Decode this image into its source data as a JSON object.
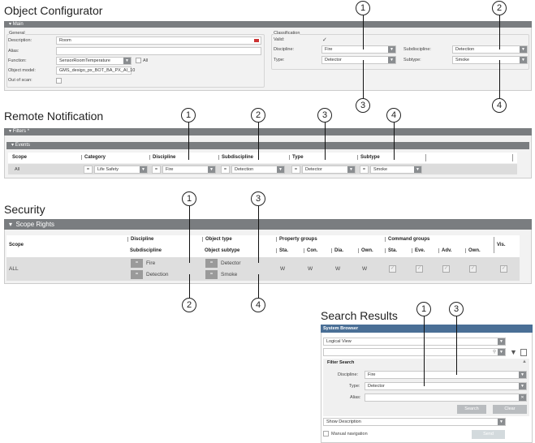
{
  "object_configurator": {
    "title": "Object Configurator",
    "panel": "Main",
    "general": {
      "legend": "General",
      "description_label": "Description:",
      "description": "Room",
      "alias_label": "Alias:",
      "alias": "",
      "function_label": "Function:",
      "function": "SensorRoomTemperature",
      "all_label": "All",
      "object_model_label": "Object model:",
      "object_model": "GMS_desigo_px_BOT_BA_PX_AI_10",
      "out_of_scan_label": "Out of scan:"
    },
    "classification": {
      "legend": "Classification",
      "valid_label": "Valid:",
      "valid_check": "✓",
      "discipline_label": "Discipline:",
      "discipline": "Fire",
      "subdiscipline_label": "Subdiscipline:",
      "subdiscipline": "Detection",
      "type_label": "Type:",
      "type": "Detector",
      "subtype_label": "Subtype:",
      "subtype": "Smoke"
    },
    "callouts": [
      "1",
      "2",
      "3",
      "4"
    ]
  },
  "remote_notification": {
    "title": "Remote Notification",
    "filters": "Filters *",
    "events": "Events",
    "headers": [
      "Scope",
      "Category",
      "Discipline",
      "Subdiscipline",
      "Type",
      "Subtype"
    ],
    "scope": "All",
    "operator": "=",
    "values": [
      "Life Safety",
      "Fire",
      "Detection",
      "Detector",
      "Smoke"
    ],
    "callouts": [
      "1",
      "2",
      "3",
      "4"
    ]
  },
  "security": {
    "title": "Security",
    "panel": "Scope Rights",
    "headers": {
      "scope": "Scope",
      "discipline": "Discipline",
      "subdiscipline": "Subdiscipline",
      "object_type": "Object type",
      "object_subtype": "Object subtype",
      "property_groups": "Property groups",
      "command_groups": "Command groups",
      "vis": "Vis.",
      "prop_cols": [
        "Sta.",
        "Con.",
        "Dia.",
        "Own."
      ],
      "cmd_cols": [
        "Sta.",
        "Eve.",
        "Adv.",
        "Own."
      ]
    },
    "row": {
      "scope": "ALL",
      "operator": "=",
      "discipline": "Fire",
      "subdiscipline": "Detection",
      "object_type": "Detector",
      "object_subtype": "Smoke",
      "prop_values": [
        "W",
        "W",
        "W",
        "W"
      ],
      "check": "✓"
    },
    "callouts": [
      "1",
      "3",
      "2",
      "4"
    ]
  },
  "search_results": {
    "title": "Search Results",
    "panel": "System Browser",
    "view": "Logical View",
    "search": "",
    "filter_search": "Filter Search",
    "discipline_label": "Discipline:",
    "discipline": "Fire",
    "type_label": "Type:",
    "type": "Detector",
    "alias_label": "Alias:",
    "alias": "",
    "search_button": "Search",
    "clear_button": "Clear",
    "show": "Show Description",
    "manual_nav": "Manual navigation",
    "send_button": "Send",
    "callouts": [
      "1",
      "3"
    ]
  }
}
